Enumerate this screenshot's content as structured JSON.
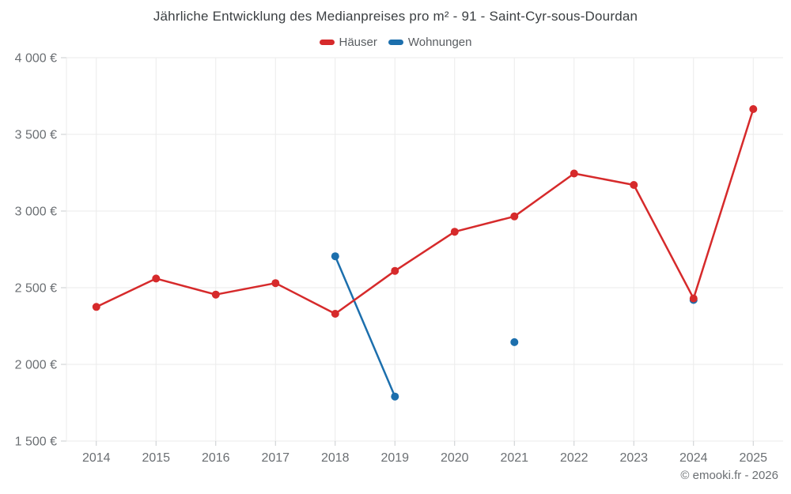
{
  "page": {
    "title": "Jährliche Entwicklung des Medianpreises pro m² - 91 - Saint-Cyr-sous-Dourdan",
    "copyright": "© emooki.fr - 2026",
    "background_color": "#ffffff"
  },
  "legend": {
    "items": [
      {
        "label": "Häuser",
        "color": "#d62a2b"
      },
      {
        "label": "Wohnungen",
        "color": "#1c6fad"
      }
    ]
  },
  "chart_data": {
    "type": "line",
    "title": "Jährliche Entwicklung des Medianpreises pro m² - 91 - Saint-Cyr-sous-Dourdan",
    "xlabel": "",
    "ylabel": "",
    "x": [
      2014,
      2015,
      2016,
      2017,
      2018,
      2019,
      2020,
      2021,
      2022,
      2023,
      2024,
      2025
    ],
    "series": [
      {
        "name": "Häuser",
        "color": "#d62a2b",
        "values": [
          2375,
          2560,
          2455,
          2530,
          2330,
          2610,
          2865,
          2965,
          3245,
          3170,
          2430,
          3665
        ]
      },
      {
        "name": "Wohnungen",
        "color": "#1c6fad",
        "values": [
          null,
          null,
          null,
          null,
          2705,
          1790,
          null,
          2145,
          null,
          null,
          2420,
          null
        ]
      }
    ],
    "ylim": [
      1500,
      4000
    ],
    "y_ticks": [
      {
        "value": 4000,
        "label": "4 000 €"
      },
      {
        "value": 3500,
        "label": "3 500 €"
      },
      {
        "value": 3000,
        "label": "3 000 €"
      },
      {
        "value": 2500,
        "label": "2 500 €"
      },
      {
        "value": 2000,
        "label": "2 000 €"
      },
      {
        "value": 1500,
        "label": "1 500 €"
      }
    ],
    "grid": true,
    "grid_color": "#ebebeb",
    "tick_label_color": "#6b6f73",
    "legend_position": "top",
    "currency": "€",
    "line_width": 2.5,
    "point_radius": 5
  }
}
